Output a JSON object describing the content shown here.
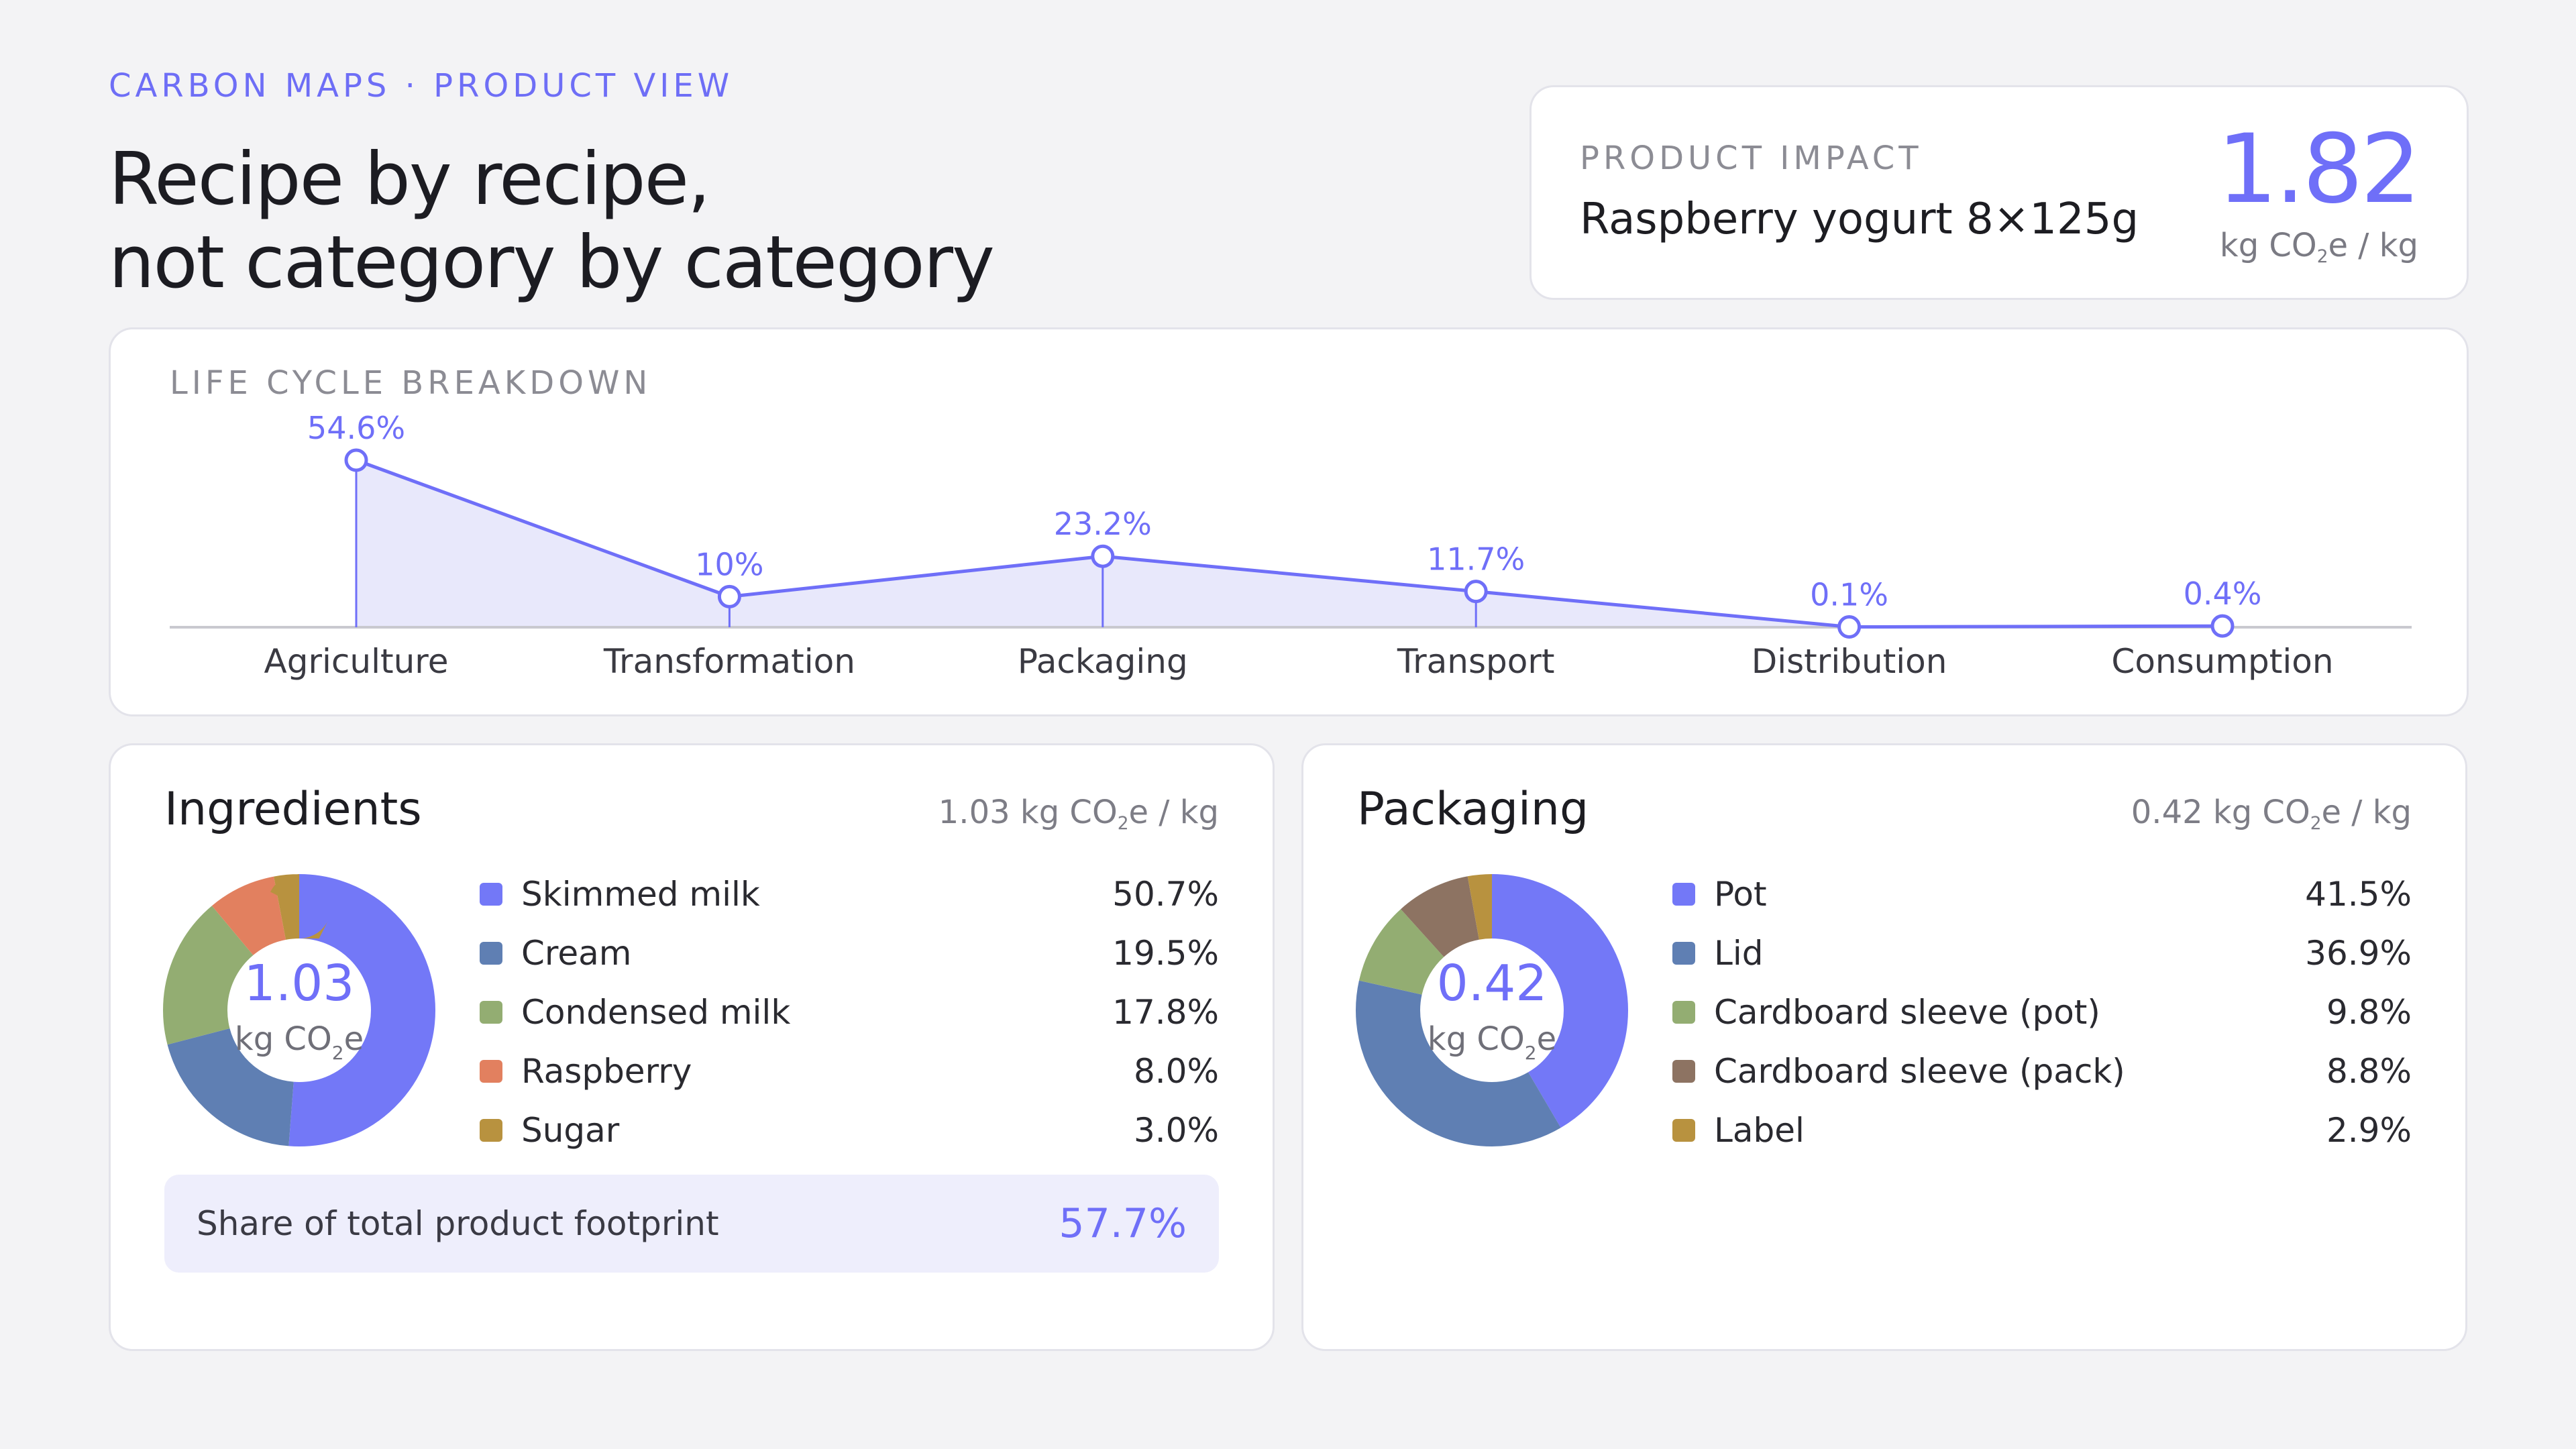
{
  "header": {
    "eyebrow": "CARBON MAPS · PRODUCT VIEW",
    "title_line1": "Recipe by recipe,",
    "title_line2": "not category by category"
  },
  "impact": {
    "label": "PRODUCT IMPACT",
    "product": "Raspberry yogurt 8×125g",
    "value": "1.82",
    "unit_pre": "kg CO",
    "unit_sub": "2",
    "unit_post": "e / kg"
  },
  "colors": {
    "accent": "#6f6ff8",
    "accent_fill": "#e8e8fb",
    "baseline": "#c9c9cf",
    "blue": "#5f7fb3",
    "green": "#93ad72",
    "orange": "#e2805f",
    "gold": "#b8923f",
    "brown": "#8d7362"
  },
  "lifecycle": {
    "title": "LIFE CYCLE BREAKDOWN",
    "chart_data": {
      "type": "area",
      "categories": [
        "Agriculture",
        "Transformation",
        "Packaging",
        "Transport",
        "Distribution",
        "Consumption"
      ],
      "values": [
        54.6,
        10,
        23.2,
        11.7,
        0.1,
        0.4
      ],
      "labels": [
        "54.6%",
        "10%",
        "23.2%",
        "11.7%",
        "0.1%",
        "0.4%"
      ],
      "ylim": [
        0,
        60
      ]
    }
  },
  "ingredients": {
    "title": "Ingredients",
    "total_pre": "1.03 kg CO",
    "total_sub": "2",
    "total_post": "e / kg",
    "center_value": "1.03",
    "center_unit_pre": "kg CO",
    "center_unit_sub": "2",
    "center_unit_post": "e",
    "items": [
      {
        "label": "Skimmed milk",
        "pct": "50.7%",
        "value": 50.7,
        "color": "#7378f7"
      },
      {
        "label": "Cream",
        "pct": "19.5%",
        "value": 19.5,
        "color": "#5f7fb3"
      },
      {
        "label": "Condensed milk",
        "pct": "17.8%",
        "value": 17.8,
        "color": "#93ad72"
      },
      {
        "label": "Raspberry",
        "pct": "8.0%",
        "value": 8.0,
        "color": "#e2805f"
      },
      {
        "label": "Sugar",
        "pct": "3.0%",
        "value": 3.0,
        "color": "#b8923f"
      }
    ],
    "share_label": "Share of total product footprint",
    "share_value": "57.7%"
  },
  "packaging": {
    "title": "Packaging",
    "total_pre": "0.42 kg CO",
    "total_sub": "2",
    "total_post": "e / kg",
    "center_value": "0.42",
    "center_unit_pre": "kg CO",
    "center_unit_sub": "2",
    "center_unit_post": "e",
    "items": [
      {
        "label": "Pot",
        "pct": "41.5%",
        "value": 41.5,
        "color": "#7378f7"
      },
      {
        "label": "Lid",
        "pct": "36.9%",
        "value": 36.9,
        "color": "#5f7fb3"
      },
      {
        "label": "Cardboard sleeve (pot)",
        "pct": "9.8%",
        "value": 9.8,
        "color": "#93ad72"
      },
      {
        "label": "Cardboard sleeve (pack)",
        "pct": "8.8%",
        "value": 8.8,
        "color": "#8d7362"
      },
      {
        "label": "Label",
        "pct": "2.9%",
        "value": 2.9,
        "color": "#b8923f"
      }
    ]
  }
}
